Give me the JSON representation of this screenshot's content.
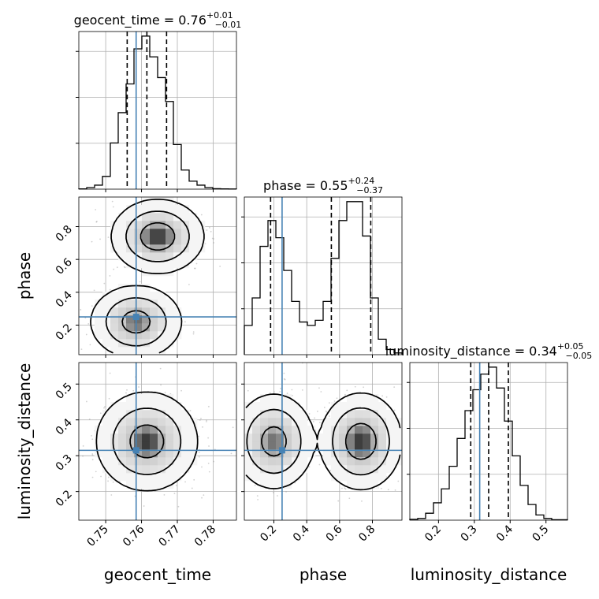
{
  "chart_data": {
    "type": "corner",
    "parameters": [
      "geocent_time",
      "phase",
      "luminosity_distance"
    ],
    "axis_labels": {
      "geocent_time": "geocent_time",
      "phase": "phase",
      "luminosity_distance": "luminosity_distance"
    },
    "ranges": {
      "geocent_time": [
        0.7425,
        0.7865
      ],
      "phase": [
        0.02,
        0.98
      ],
      "luminosity_distance": [
        0.12,
        0.56
      ]
    },
    "ticks": {
      "geocent_time": [
        0.75,
        0.76,
        0.77,
        0.78
      ],
      "phase": [
        0.2,
        0.4,
        0.6,
        0.8
      ],
      "luminosity_distance": [
        0.2,
        0.3,
        0.4,
        0.5
      ]
    },
    "tick_labels": {
      "geocent_time": [
        "0.75",
        "0.76",
        "0.77",
        "0.78"
      ],
      "phase": [
        "0.2",
        "0.4",
        "0.6",
        "0.8"
      ],
      "luminosity_distance": [
        "0.2",
        "0.3",
        "0.4",
        "0.5"
      ]
    },
    "truths": {
      "geocent_time": 0.7585,
      "phase": 0.25,
      "luminosity_distance": 0.315
    },
    "truth_color": "#4682b4",
    "titles": {
      "geocent_time": {
        "prefix": "geocent_time = 0.76",
        "up": "+0.01",
        "down": "−0.01"
      },
      "phase": {
        "prefix": "phase = 0.55",
        "up": "+0.24",
        "down": "−0.37"
      },
      "luminosity_distance": {
        "prefix": "luminosity_distance = 0.34",
        "up": "+0.05",
        "down": "−0.05"
      }
    },
    "histograms": {
      "geocent_time": {
        "bin_edges": [
          0.7425,
          0.7447,
          0.7469,
          0.7491,
          0.7513,
          0.7535,
          0.7557,
          0.7579,
          0.7601,
          0.7623,
          0.7645,
          0.7667,
          0.7689,
          0.7711,
          0.7733,
          0.7755,
          0.7777,
          0.7799,
          0.7821,
          0.7843,
          0.7865
        ],
        "counts": [
          0.2,
          1.0,
          2.5,
          8.0,
          29.0,
          48.0,
          66.0,
          88.0,
          96.0,
          83.0,
          70.0,
          55.0,
          28.0,
          12.0,
          5.0,
          2.5,
          1.0,
          0.3,
          0.2,
          0.1
        ],
        "quantiles": [
          0.756,
          0.7615,
          0.767
        ]
      },
      "phase": {
        "bin_edges": [
          0.02,
          0.068,
          0.116,
          0.164,
          0.212,
          0.26,
          0.308,
          0.356,
          0.404,
          0.452,
          0.5,
          0.548,
          0.596,
          0.644,
          0.692,
          0.74,
          0.788,
          0.836,
          0.884,
          0.932,
          0.98
        ],
        "counts": [
          17.0,
          33.0,
          63.0,
          78.0,
          68.0,
          49.0,
          31.0,
          19.0,
          17.0,
          20.0,
          31.0,
          56.0,
          78.0,
          89.0,
          89.0,
          69.0,
          33.0,
          9.0,
          3.0,
          1.0
        ],
        "quantiles": [
          0.18,
          0.55,
          0.79
        ]
      },
      "luminosity_distance": {
        "bin_edges": [
          0.12,
          0.142,
          0.164,
          0.186,
          0.208,
          0.23,
          0.252,
          0.274,
          0.296,
          0.318,
          0.34,
          0.362,
          0.384,
          0.406,
          0.428,
          0.45,
          0.472,
          0.494,
          0.516,
          0.538,
          0.56
        ],
        "counts": [
          0.5,
          1.0,
          4.0,
          10.0,
          18.0,
          31.0,
          47.0,
          63.0,
          75.0,
          84.0,
          88.0,
          76.0,
          57.0,
          37.0,
          20.0,
          9.0,
          3.0,
          1.0,
          0.3,
          0.3
        ],
        "quantiles": [
          0.29,
          0.34,
          0.395
        ]
      }
    },
    "joint_2d": [
      {
        "x": "geocent_time",
        "y": "phase",
        "modes": [
          {
            "x": 0.7645,
            "y": 0.74,
            "sx": 0.0043,
            "sy": 0.075,
            "w": 0.55
          },
          {
            "x": 0.7585,
            "y": 0.22,
            "sx": 0.0043,
            "sy": 0.075,
            "w": 0.45
          }
        ]
      },
      {
        "x": "geocent_time",
        "y": "luminosity_distance",
        "modes": [
          {
            "x": 0.7615,
            "y": 0.34,
            "sx": 0.0047,
            "sy": 0.046,
            "w": 1.0
          }
        ]
      },
      {
        "x": "phase",
        "y": "luminosity_distance",
        "modes": [
          {
            "x": 0.2,
            "y": 0.34,
            "sx": 0.085,
            "sy": 0.046,
            "w": 0.45
          },
          {
            "x": 0.73,
            "y": 0.34,
            "sx": 0.085,
            "sy": 0.046,
            "w": 0.55
          }
        ]
      }
    ]
  }
}
